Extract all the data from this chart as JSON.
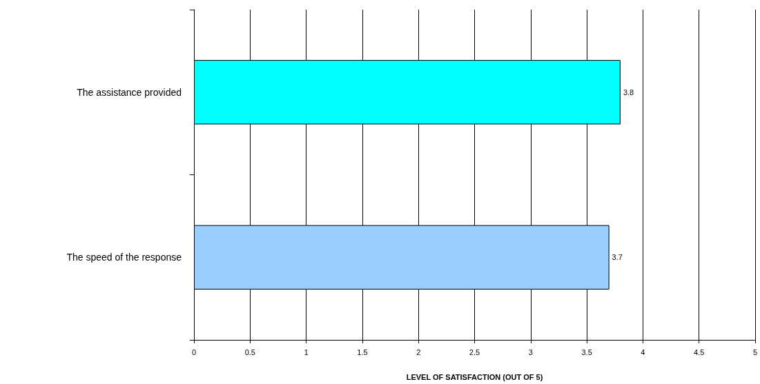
{
  "chart_data": {
    "type": "bar",
    "orientation": "horizontal",
    "categories": [
      "The assistance provided",
      "The speed of the response"
    ],
    "values": [
      3.8,
      3.7
    ],
    "colors": [
      "#00ffff",
      "#99ccff"
    ],
    "xlabel": "LEVEL OF SATISFACTION (OUT OF 5)",
    "xlim": [
      0,
      5
    ],
    "xticks": [
      0,
      0.5,
      1,
      1.5,
      2,
      2.5,
      3,
      3.5,
      4,
      4.5,
      5
    ],
    "grid": "x",
    "data_labels": true
  }
}
